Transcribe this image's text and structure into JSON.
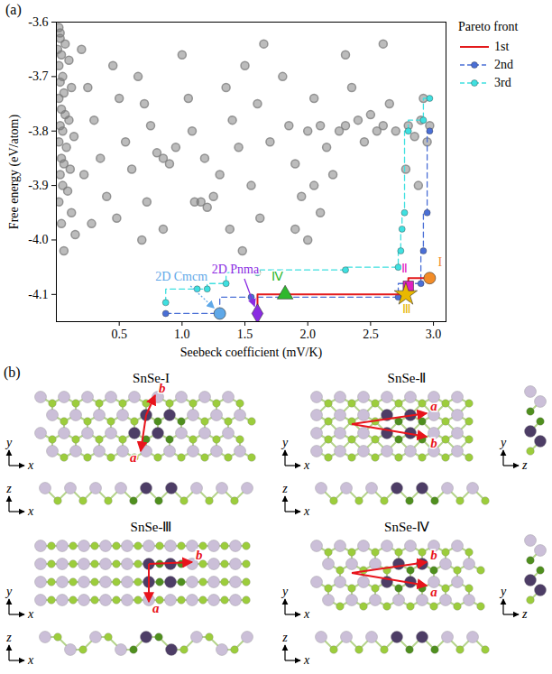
{
  "chart_data": {
    "type": "scatter",
    "panel_label": "(a)",
    "x_label": "Seebeck coefficient (mV/K)",
    "y_label": "Free energy (eV/atom)",
    "xlim": [
      0,
      3.1
    ],
    "xticks": [
      0.5,
      {
        "value": 1,
        "label": "1.0"
      },
      1.5,
      {
        "value": 2,
        "label": "2.0"
      },
      2.5,
      {
        "value": 3,
        "label": "3.0"
      }
    ],
    "ylim": [
      -4.15,
      -3.6
    ],
    "yticks": [
      -4.1,
      {
        "value": -4,
        "label": "-4.0"
      },
      -3.9,
      -3.8,
      -3.7,
      -3.6
    ],
    "legend": "right",
    "legend_title": "Pareto front",
    "candidates": {
      "color": "#7a7a7a",
      "points": [
        [
          0.02,
          -3.61
        ],
        [
          0.03,
          -3.63
        ],
        [
          0.01,
          -3.65
        ],
        [
          0.04,
          -3.66
        ],
        [
          0.02,
          -3.68
        ],
        [
          0.05,
          -3.7
        ],
        [
          0.03,
          -3.71
        ],
        [
          0.06,
          -3.73
        ],
        [
          0.02,
          -3.74
        ],
        [
          0.04,
          -3.76
        ],
        [
          0.07,
          -3.77
        ],
        [
          0.03,
          -3.79
        ],
        [
          0.05,
          -3.8
        ],
        [
          0.02,
          -3.82
        ],
        [
          0.08,
          -3.83
        ],
        [
          0.04,
          -3.85
        ],
        [
          0.06,
          -3.86
        ],
        [
          0.03,
          -3.88
        ],
        [
          0.05,
          -3.9
        ],
        [
          0.09,
          -3.91
        ],
        [
          0.02,
          -3.93
        ],
        [
          0.12,
          -3.95
        ],
        [
          0.04,
          -3.97
        ],
        [
          0.15,
          -3.99
        ],
        [
          0.06,
          -4.02
        ],
        [
          0.03,
          -3.62
        ],
        [
          0.07,
          -3.64
        ],
        [
          0.1,
          -3.67
        ],
        [
          0.12,
          -3.72
        ],
        [
          0.1,
          -3.78
        ],
        [
          0.14,
          -3.81
        ],
        [
          0.11,
          -3.87
        ],
        [
          0.2,
          -3.65
        ],
        [
          0.25,
          -3.72
        ],
        [
          0.3,
          -3.78
        ],
        [
          0.35,
          -3.85
        ],
        [
          0.22,
          -3.88
        ],
        [
          0.4,
          -3.92
        ],
        [
          0.28,
          -3.97
        ],
        [
          0.45,
          -3.68
        ],
        [
          0.5,
          -3.74
        ],
        [
          0.55,
          -3.82
        ],
        [
          0.6,
          -3.87
        ],
        [
          0.48,
          -3.96
        ],
        [
          0.65,
          -3.7
        ],
        [
          0.7,
          -3.75
        ],
        [
          0.75,
          -3.79
        ],
        [
          0.8,
          -3.84
        ],
        [
          0.85,
          -3.85
        ],
        [
          0.9,
          -3.86
        ],
        [
          0.95,
          -3.83
        ],
        [
          0.72,
          -3.93
        ],
        [
          0.68,
          -4.0
        ],
        [
          0.85,
          -3.98
        ],
        [
          1.0,
          -3.66
        ],
        [
          1.05,
          -3.74
        ],
        [
          1.1,
          -3.93
        ],
        [
          1.15,
          -3.93
        ],
        [
          1.2,
          -3.94
        ],
        [
          1.25,
          -3.92
        ],
        [
          1.3,
          -3.88
        ],
        [
          1.08,
          -3.8
        ],
        [
          1.18,
          -3.85
        ],
        [
          1.35,
          -3.72
        ],
        [
          1.4,
          -3.78
        ],
        [
          1.45,
          -3.83
        ],
        [
          1.5,
          -3.68
        ],
        [
          1.55,
          -3.9
        ],
        [
          1.6,
          -3.75
        ],
        [
          1.65,
          -3.64
        ],
        [
          1.7,
          -3.82
        ],
        [
          1.38,
          -3.98
        ],
        [
          1.48,
          -4.02
        ],
        [
          1.62,
          -3.96
        ],
        [
          1.8,
          -3.7
        ],
        [
          1.85,
          -3.79
        ],
        [
          1.9,
          -3.86
        ],
        [
          1.95,
          -3.92
        ],
        [
          2.0,
          -3.8
        ],
        [
          2.05,
          -3.74
        ],
        [
          2.1,
          -3.79
        ],
        [
          2.15,
          -3.83
        ],
        [
          2.2,
          -3.88
        ],
        [
          2.25,
          -3.8
        ],
        [
          2.3,
          -3.79
        ],
        [
          2.35,
          -3.72
        ],
        [
          2.4,
          -3.78
        ],
        [
          2.45,
          -3.82
        ],
        [
          2.5,
          -3.77
        ],
        [
          2.55,
          -3.8
        ],
        [
          2.6,
          -3.79
        ],
        [
          2.65,
          -3.75
        ],
        [
          2.7,
          -3.8
        ],
        [
          1.9,
          -3.98
        ],
        [
          2.0,
          -4.0
        ],
        [
          2.1,
          -3.95
        ],
        [
          2.3,
          -3.66
        ],
        [
          2.6,
          -3.64
        ],
        [
          2.05,
          -3.9
        ],
        [
          2.8,
          -3.79
        ],
        [
          2.85,
          -3.81
        ],
        [
          2.9,
          -3.78
        ],
        [
          2.95,
          -3.82
        ],
        [
          2.78,
          -3.87
        ],
        [
          2.88,
          -3.9
        ],
        [
          2.92,
          -3.74
        ],
        [
          2.97,
          -3.79
        ]
      ]
    },
    "series": [
      {
        "name": "1st",
        "color": "#e31a1c",
        "line_style": "solid",
        "marker": "none",
        "x": [
          1.6,
          1.82,
          2.78,
          2.8,
          2.97
        ],
        "y": [
          -4.135,
          -4.1,
          -4.1,
          -4.085,
          -4.07
        ]
      },
      {
        "name": "2nd",
        "color": "#4a6fd6",
        "line_style": "dashed",
        "marker": "circle",
        "x": [
          0.87,
          1.3,
          1.55,
          2.72,
          2.9,
          2.92,
          2.95,
          2.97
        ],
        "y": [
          -4.135,
          -4.135,
          -4.105,
          -4.105,
          -4.08,
          -4.02,
          -3.95,
          -3.8
        ]
      },
      {
        "name": "3rd",
        "color": "#3fe0e0",
        "line_style": "dashed",
        "marker": "circle",
        "x": [
          0.87,
          1.12,
          1.2,
          1.35,
          1.6,
          2.3,
          2.72,
          2.74,
          2.75,
          2.77,
          2.8,
          2.92,
          2.97
        ],
        "y": [
          -4.115,
          -4.09,
          -4.09,
          -4.08,
          -4.06,
          -4.055,
          -4.05,
          -4.02,
          -3.98,
          -3.95,
          -3.8,
          -3.78,
          -3.74
        ]
      }
    ],
    "markers": [
      {
        "label": "I",
        "x": 2.97,
        "y": -4.07,
        "color": "#f28c28",
        "marker": "circle"
      },
      {
        "label": "Ⅱ",
        "x": 2.8,
        "y": -4.085,
        "color": "#e020c0",
        "marker": "square"
      },
      {
        "label": "Ⅲ",
        "x": 2.78,
        "y": -4.1,
        "color": "#e8b800",
        "marker": "star"
      },
      {
        "label": "Ⅳ",
        "x": 1.82,
        "y": -4.1,
        "color": "#2eb82e",
        "marker": "triangle"
      },
      {
        "label": "2D Pnma",
        "x": 1.6,
        "y": -4.135,
        "color": "#8a2be2",
        "marker": "diamond"
      },
      {
        "label": "2D Cmcm",
        "x": 1.3,
        "y": -4.135,
        "color": "#5fa8e8",
        "marker": "circle"
      }
    ]
  },
  "diagram": {
    "label": "(b)",
    "panels": [
      {
        "title": "SnSe-I",
        "vectors": [
          "a",
          "b"
        ],
        "views": [
          [
            "x",
            "y"
          ],
          [
            "x",
            "z"
          ]
        ]
      },
      {
        "title": "SnSe-Ⅱ",
        "vectors": [
          "a",
          "b"
        ],
        "views": [
          [
            "x",
            "y"
          ],
          [
            "x",
            "z"
          ],
          [
            "z",
            "y"
          ]
        ]
      },
      {
        "title": "SnSe-Ⅲ",
        "vectors": [
          "a",
          "b"
        ],
        "views": [
          [
            "x",
            "y"
          ],
          [
            "x",
            "z"
          ]
        ]
      },
      {
        "title": "SnSe-Ⅳ",
        "vectors": [
          "a",
          "b"
        ],
        "views": [
          [
            "x",
            "y"
          ],
          [
            "x",
            "z"
          ],
          [
            "z",
            "y"
          ]
        ]
      }
    ]
  }
}
